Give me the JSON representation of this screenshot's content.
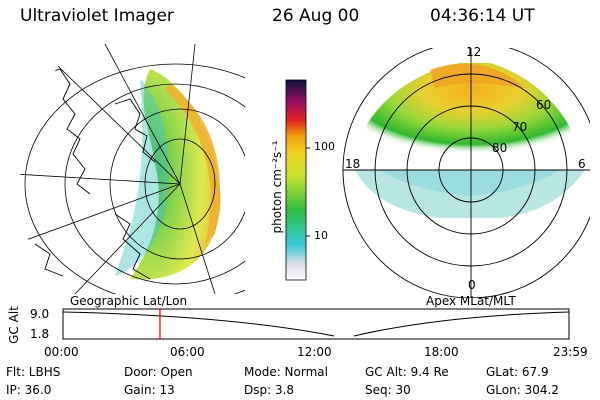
{
  "header": {
    "instrument": "Ultraviolet Imager",
    "date": "26 Aug 00",
    "time": "04:36:14 UT"
  },
  "geo_panel": {
    "label": "Geographic Lat/Lon"
  },
  "polar_panel": {
    "label": "Apex MLat/MLT",
    "mlt_labels": [
      "12",
      "18",
      "6",
      "0"
    ],
    "lat_labels": [
      "60",
      "70",
      "80"
    ]
  },
  "colorbar": {
    "unit_label": "photon cm⁻²s⁻¹",
    "ticks": [
      "100",
      "10"
    ],
    "scale": "log"
  },
  "altitude_plot": {
    "ylabel": "GC Alt",
    "y_ticks": [
      "9.0",
      "1.8"
    ],
    "x_ticks": [
      "00:00",
      "06:00",
      "12:00",
      "18:00",
      "23:59"
    ],
    "marker_time_hours": 4.6,
    "marker_color": "#e00000"
  },
  "status": {
    "filter": "Flt: LBHS",
    "door": "Door: Open",
    "mode": "Mode: Normal",
    "gc_alt": "GC Alt: 9.4 Re",
    "glat": "GLat:  67.9",
    "ip": "IP: 36.0",
    "gain": "Gain: 13",
    "dsp": "Dsp:     3.8",
    "seq": "Seq: 30",
    "glon": "GLon: 304.2"
  }
}
